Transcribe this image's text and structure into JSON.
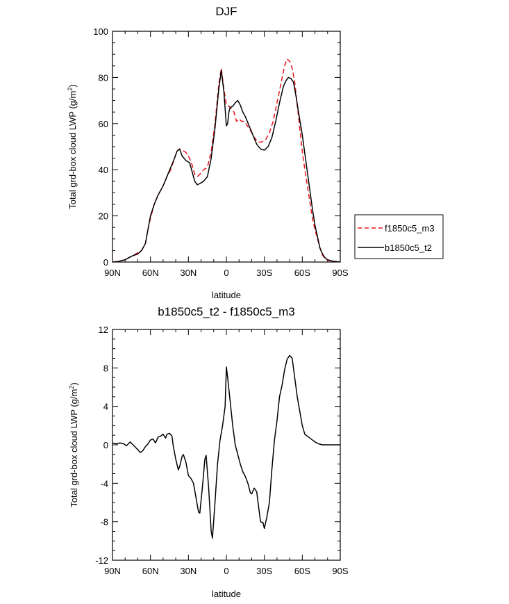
{
  "chart_data": [
    {
      "type": "line",
      "title": "DJF",
      "xlabel": "latitude",
      "ylabel": "Total grd-box cloud LWP (g/m²)",
      "xlim": [
        -90,
        90
      ],
      "ylim": [
        0,
        100
      ],
      "x_ticks": [
        -90,
        -60,
        -30,
        0,
        30,
        60,
        90
      ],
      "x_tick_labels": [
        "90N",
        "60N",
        "30N",
        "0",
        "30S",
        "60S",
        "90S"
      ],
      "y_ticks": [
        0,
        20,
        40,
        60,
        80,
        100
      ],
      "y_tick_labels": [
        "0",
        "20",
        "40",
        "60",
        "80",
        "100"
      ],
      "legend": {
        "placement": "right",
        "entries": [
          "f1850c5_m3",
          "b1850c5_t2"
        ]
      },
      "series": [
        {
          "name": "f1850c5_m3",
          "color": "#e8141b",
          "dash": "dashed",
          "points": [
            [
              -90,
              0
            ],
            [
              -85,
              0.3
            ],
            [
              -80,
              1
            ],
            [
              -75,
              2.5
            ],
            [
              -70,
              4
            ],
            [
              -67,
              5
            ],
            [
              -64,
              8
            ],
            [
              -62,
              14
            ],
            [
              -60,
              19
            ],
            [
              -57,
              25
            ],
            [
              -54,
              29
            ],
            [
              -50,
              33
            ],
            [
              -47,
              37
            ],
            [
              -44,
              40
            ],
            [
              -41,
              45
            ],
            [
              -39,
              48
            ],
            [
              -37,
              49
            ],
            [
              -35,
              48.5
            ],
            [
              -32,
              47.5
            ],
            [
              -30,
              46
            ],
            [
              -27,
              42
            ],
            [
              -25,
              38
            ],
            [
              -23,
              37
            ],
            [
              -21,
              38
            ],
            [
              -18,
              40
            ],
            [
              -15,
              41
            ],
            [
              -12,
              48
            ],
            [
              -9,
              60
            ],
            [
              -6,
              77
            ],
            [
              -4,
              84
            ],
            [
              -2,
              75
            ],
            [
              0,
              68
            ],
            [
              2,
              67.5
            ],
            [
              4,
              66.5
            ],
            [
              6,
              65
            ],
            [
              8,
              61
            ],
            [
              10,
              62
            ],
            [
              12,
              61
            ],
            [
              14,
              61
            ],
            [
              16,
              59.5
            ],
            [
              19,
              57
            ],
            [
              22,
              54
            ],
            [
              25,
              52
            ],
            [
              28,
              52
            ],
            [
              31,
              53
            ],
            [
              34,
              56
            ],
            [
              37,
              61
            ],
            [
              40,
              69
            ],
            [
              43,
              77
            ],
            [
              46,
              85
            ],
            [
              48,
              88
            ],
            [
              50,
              87
            ],
            [
              52,
              84
            ],
            [
              54,
              78
            ],
            [
              56,
              68
            ],
            [
              58,
              58
            ],
            [
              60,
              48
            ],
            [
              62,
              40
            ],
            [
              64,
              33
            ],
            [
              66,
              26
            ],
            [
              68,
              19
            ],
            [
              70,
              14
            ],
            [
              72,
              10
            ],
            [
              74,
              6
            ],
            [
              76,
              3
            ],
            [
              78,
              1.5
            ],
            [
              80,
              0.8
            ],
            [
              84,
              0.3
            ],
            [
              90,
              0
            ]
          ]
        },
        {
          "name": "b1850c5_t2",
          "color": "#000000",
          "dash": "solid",
          "points": [
            [
              -90,
              0
            ],
            [
              -85,
              0.3
            ],
            [
              -80,
              1
            ],
            [
              -75,
              2.5
            ],
            [
              -70,
              3.5
            ],
            [
              -67,
              5
            ],
            [
              -64,
              8
            ],
            [
              -62,
              14
            ],
            [
              -60,
              20
            ],
            [
              -57,
              25
            ],
            [
              -54,
              29
            ],
            [
              -50,
              33
            ],
            [
              -47,
              37
            ],
            [
              -44,
              41
            ],
            [
              -41,
              45
            ],
            [
              -39,
              48
            ],
            [
              -37,
              49
            ],
            [
              -35,
              46
            ],
            [
              -32,
              44
            ],
            [
              -29,
              43
            ],
            [
              -27,
              39
            ],
            [
              -25,
              35
            ],
            [
              -23,
              33.5
            ],
            [
              -21,
              34
            ],
            [
              -18,
              35
            ],
            [
              -15,
              37
            ],
            [
              -12,
              45
            ],
            [
              -9,
              58
            ],
            [
              -6,
              75
            ],
            [
              -4,
              83
            ],
            [
              -2,
              74
            ],
            [
              0,
              59
            ],
            [
              1,
              60
            ],
            [
              2,
              65
            ],
            [
              3,
              67
            ],
            [
              5,
              67.5
            ],
            [
              7,
              69
            ],
            [
              9,
              70
            ],
            [
              11,
              68
            ],
            [
              13,
              65
            ],
            [
              15,
              63
            ],
            [
              18,
              59
            ],
            [
              21,
              55
            ],
            [
              24,
              51
            ],
            [
              27,
              49
            ],
            [
              30,
              48.5
            ],
            [
              33,
              50
            ],
            [
              36,
              54
            ],
            [
              39,
              61
            ],
            [
              42,
              69
            ],
            [
              45,
              76
            ],
            [
              47,
              78.5
            ],
            [
              49,
              80
            ],
            [
              51,
              79.5
            ],
            [
              53,
              78
            ],
            [
              55,
              72
            ],
            [
              57,
              65
            ],
            [
              60,
              55
            ],
            [
              62,
              47
            ],
            [
              64,
              39
            ],
            [
              66,
              31
            ],
            [
              68,
              23
            ],
            [
              70,
              16
            ],
            [
              72,
              11
            ],
            [
              74,
              6
            ],
            [
              76,
              3.5
            ],
            [
              78,
              1.8
            ],
            [
              80,
              1
            ],
            [
              84,
              0.4
            ],
            [
              90,
              0
            ]
          ]
        }
      ]
    },
    {
      "type": "line",
      "title": "b1850c5_t2 - f1850c5_m3",
      "xlabel": "latitude",
      "ylabel": "Total grd-box cloud LWP (g/m²)",
      "xlim": [
        -90,
        90
      ],
      "ylim": [
        -12,
        12
      ],
      "x_ticks": [
        -90,
        -60,
        -30,
        0,
        30,
        60,
        90
      ],
      "x_tick_labels": [
        "90N",
        "60N",
        "30N",
        "0",
        "30S",
        "60S",
        "90S"
      ],
      "y_ticks": [
        -12,
        -8,
        -4,
        0,
        4,
        8,
        12
      ],
      "y_tick_labels": [
        "-12",
        "-8",
        "-4",
        "0",
        "4",
        "8",
        "12"
      ],
      "series": [
        {
          "name": "b1850c5_t2 - f1850c5_m3",
          "color": "#000000",
          "dash": "solid",
          "points": [
            [
              -90,
              0.2
            ],
            [
              -87,
              0.1
            ],
            [
              -84,
              0.2
            ],
            [
              -81,
              0.1
            ],
            [
              -79,
              -0.1
            ],
            [
              -76,
              0.3
            ],
            [
              -73,
              -0.1
            ],
            [
              -70,
              -0.5
            ],
            [
              -68,
              -0.8
            ],
            [
              -66,
              -0.6
            ],
            [
              -64,
              -0.2
            ],
            [
              -62,
              0.1
            ],
            [
              -60,
              0.5
            ],
            [
              -58,
              0.6
            ],
            [
              -56,
              0.2
            ],
            [
              -54,
              0.8
            ],
            [
              -52,
              0.9
            ],
            [
              -50,
              1.1
            ],
            [
              -48,
              0.7
            ],
            [
              -47,
              1.1
            ],
            [
              -45,
              1.2
            ],
            [
              -43,
              0.9
            ],
            [
              -42,
              -0.1
            ],
            [
              -40,
              -1.5
            ],
            [
              -38,
              -2.6
            ],
            [
              -37,
              -2.3
            ],
            [
              -35,
              -1.2
            ],
            [
              -34,
              -1.0
            ],
            [
              -32,
              -1.8
            ],
            [
              -30,
              -3.2
            ],
            [
              -28,
              -3.5
            ],
            [
              -26,
              -4.0
            ],
            [
              -24,
              -5.5
            ],
            [
              -22,
              -7.0
            ],
            [
              -21,
              -7.1
            ],
            [
              -19,
              -4.5
            ],
            [
              -17,
              -1.5
            ],
            [
              -16,
              -1.1
            ],
            [
              -14,
              -4.5
            ],
            [
              -12,
              -9.0
            ],
            [
              -11,
              -9.7
            ],
            [
              -9,
              -6.0
            ],
            [
              -7,
              -2.0
            ],
            [
              -5,
              0.5
            ],
            [
              -3,
              2.0
            ],
            [
              -1,
              4.0
            ],
            [
              0,
              8.1
            ],
            [
              1,
              7.0
            ],
            [
              3,
              4.5
            ],
            [
              5,
              2.0
            ],
            [
              7,
              0.0
            ],
            [
              9,
              -1.0
            ],
            [
              11,
              -2.0
            ],
            [
              13,
              -2.8
            ],
            [
              15,
              -3.3
            ],
            [
              17,
              -4.0
            ],
            [
              19,
              -5.0
            ],
            [
              20,
              -5.1
            ],
            [
              22,
              -4.5
            ],
            [
              24,
              -4.9
            ],
            [
              26,
              -7.0
            ],
            [
              27,
              -8.0
            ],
            [
              29,
              -8.1
            ],
            [
              30,
              -8.7
            ],
            [
              32,
              -7.5
            ],
            [
              34,
              -6.0
            ],
            [
              36,
              -2.5
            ],
            [
              38,
              0.5
            ],
            [
              40,
              2.5
            ],
            [
              42,
              5.0
            ],
            [
              44,
              6.2
            ],
            [
              46,
              7.8
            ],
            [
              48,
              8.9
            ],
            [
              50,
              9.3
            ],
            [
              52,
              9.0
            ],
            [
              54,
              7.0
            ],
            [
              56,
              5.0
            ],
            [
              58,
              3.5
            ],
            [
              60,
              2.0
            ],
            [
              62,
              1.1
            ],
            [
              64,
              0.9
            ],
            [
              66,
              0.7
            ],
            [
              68,
              0.5
            ],
            [
              70,
              0.3
            ],
            [
              73,
              0.1
            ],
            [
              76,
              0.0
            ],
            [
              80,
              0.0
            ],
            [
              90,
              0.0
            ]
          ]
        }
      ]
    }
  ]
}
